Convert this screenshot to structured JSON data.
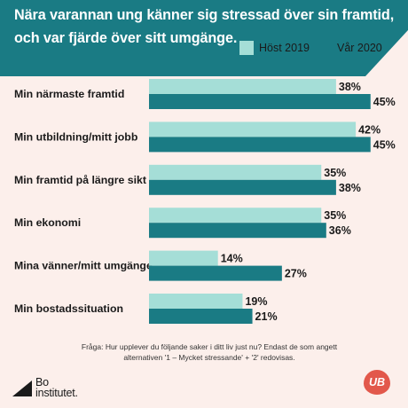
{
  "title_lines": [
    "Nära varannan ung känner sig stressad över sin framtid,",
    "och var fjärde över sitt umgänge."
  ],
  "colors": {
    "header_bg": "#1a7b84",
    "series_2019": "#a5ded7",
    "series_2020": "#1a7b84",
    "background": "#fcefeb",
    "ub_badge": "#e2584b"
  },
  "footnote": "Fråga: Hur upplever du följande saker i ditt liv just nu? Endast de som angett alternativen '1 – Mycket stressande' + '2' redovisas.",
  "logo": {
    "text_line1": "Bo",
    "text_line2": "institutet.",
    "mark_icon": "boinstitutet-triangle-icon"
  },
  "badge": {
    "text": "UB"
  },
  "chart_data": {
    "type": "bar",
    "orientation": "horizontal",
    "categories": [
      "Min närmaste framtid",
      "Min utbildning/mitt jobb",
      "Min framtid på längre sikt",
      "Min ekonomi",
      "Mina vänner/mitt umgänge",
      "Min bostadssituation"
    ],
    "series": [
      {
        "name": "Höst 2019",
        "values": [
          38,
          42,
          35,
          35,
          14,
          19
        ],
        "labels": [
          "38%",
          "42%",
          "35%",
          "35%",
          "14%",
          "19%"
        ]
      },
      {
        "name": "Vår 2020",
        "values": [
          45,
          45,
          38,
          36,
          27,
          21
        ],
        "labels": [
          "45%",
          "45%",
          "38%",
          "36%",
          "27%",
          "21%"
        ]
      }
    ],
    "unit": "%",
    "legend_position": "top-right",
    "grid": false
  }
}
